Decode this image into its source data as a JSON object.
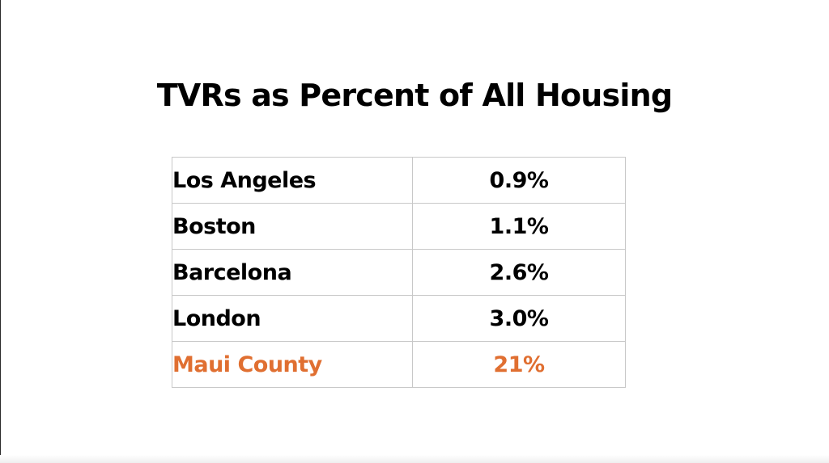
{
  "title": "TVRs as Percent of All Housing",
  "colors": {
    "text": "#000000",
    "highlight": "#e06f31",
    "border": "#c8c8c8"
  },
  "rows": [
    {
      "city": "Los Angeles",
      "value": "0.9%",
      "highlight": false
    },
    {
      "city": "Boston",
      "value": "1.1%",
      "highlight": false
    },
    {
      "city": "Barcelona",
      "value": "2.6%",
      "highlight": false
    },
    {
      "city": "London",
      "value": "3.0%",
      "highlight": false
    },
    {
      "city": "Maui County",
      "value": "21%",
      "highlight": true
    }
  ]
}
